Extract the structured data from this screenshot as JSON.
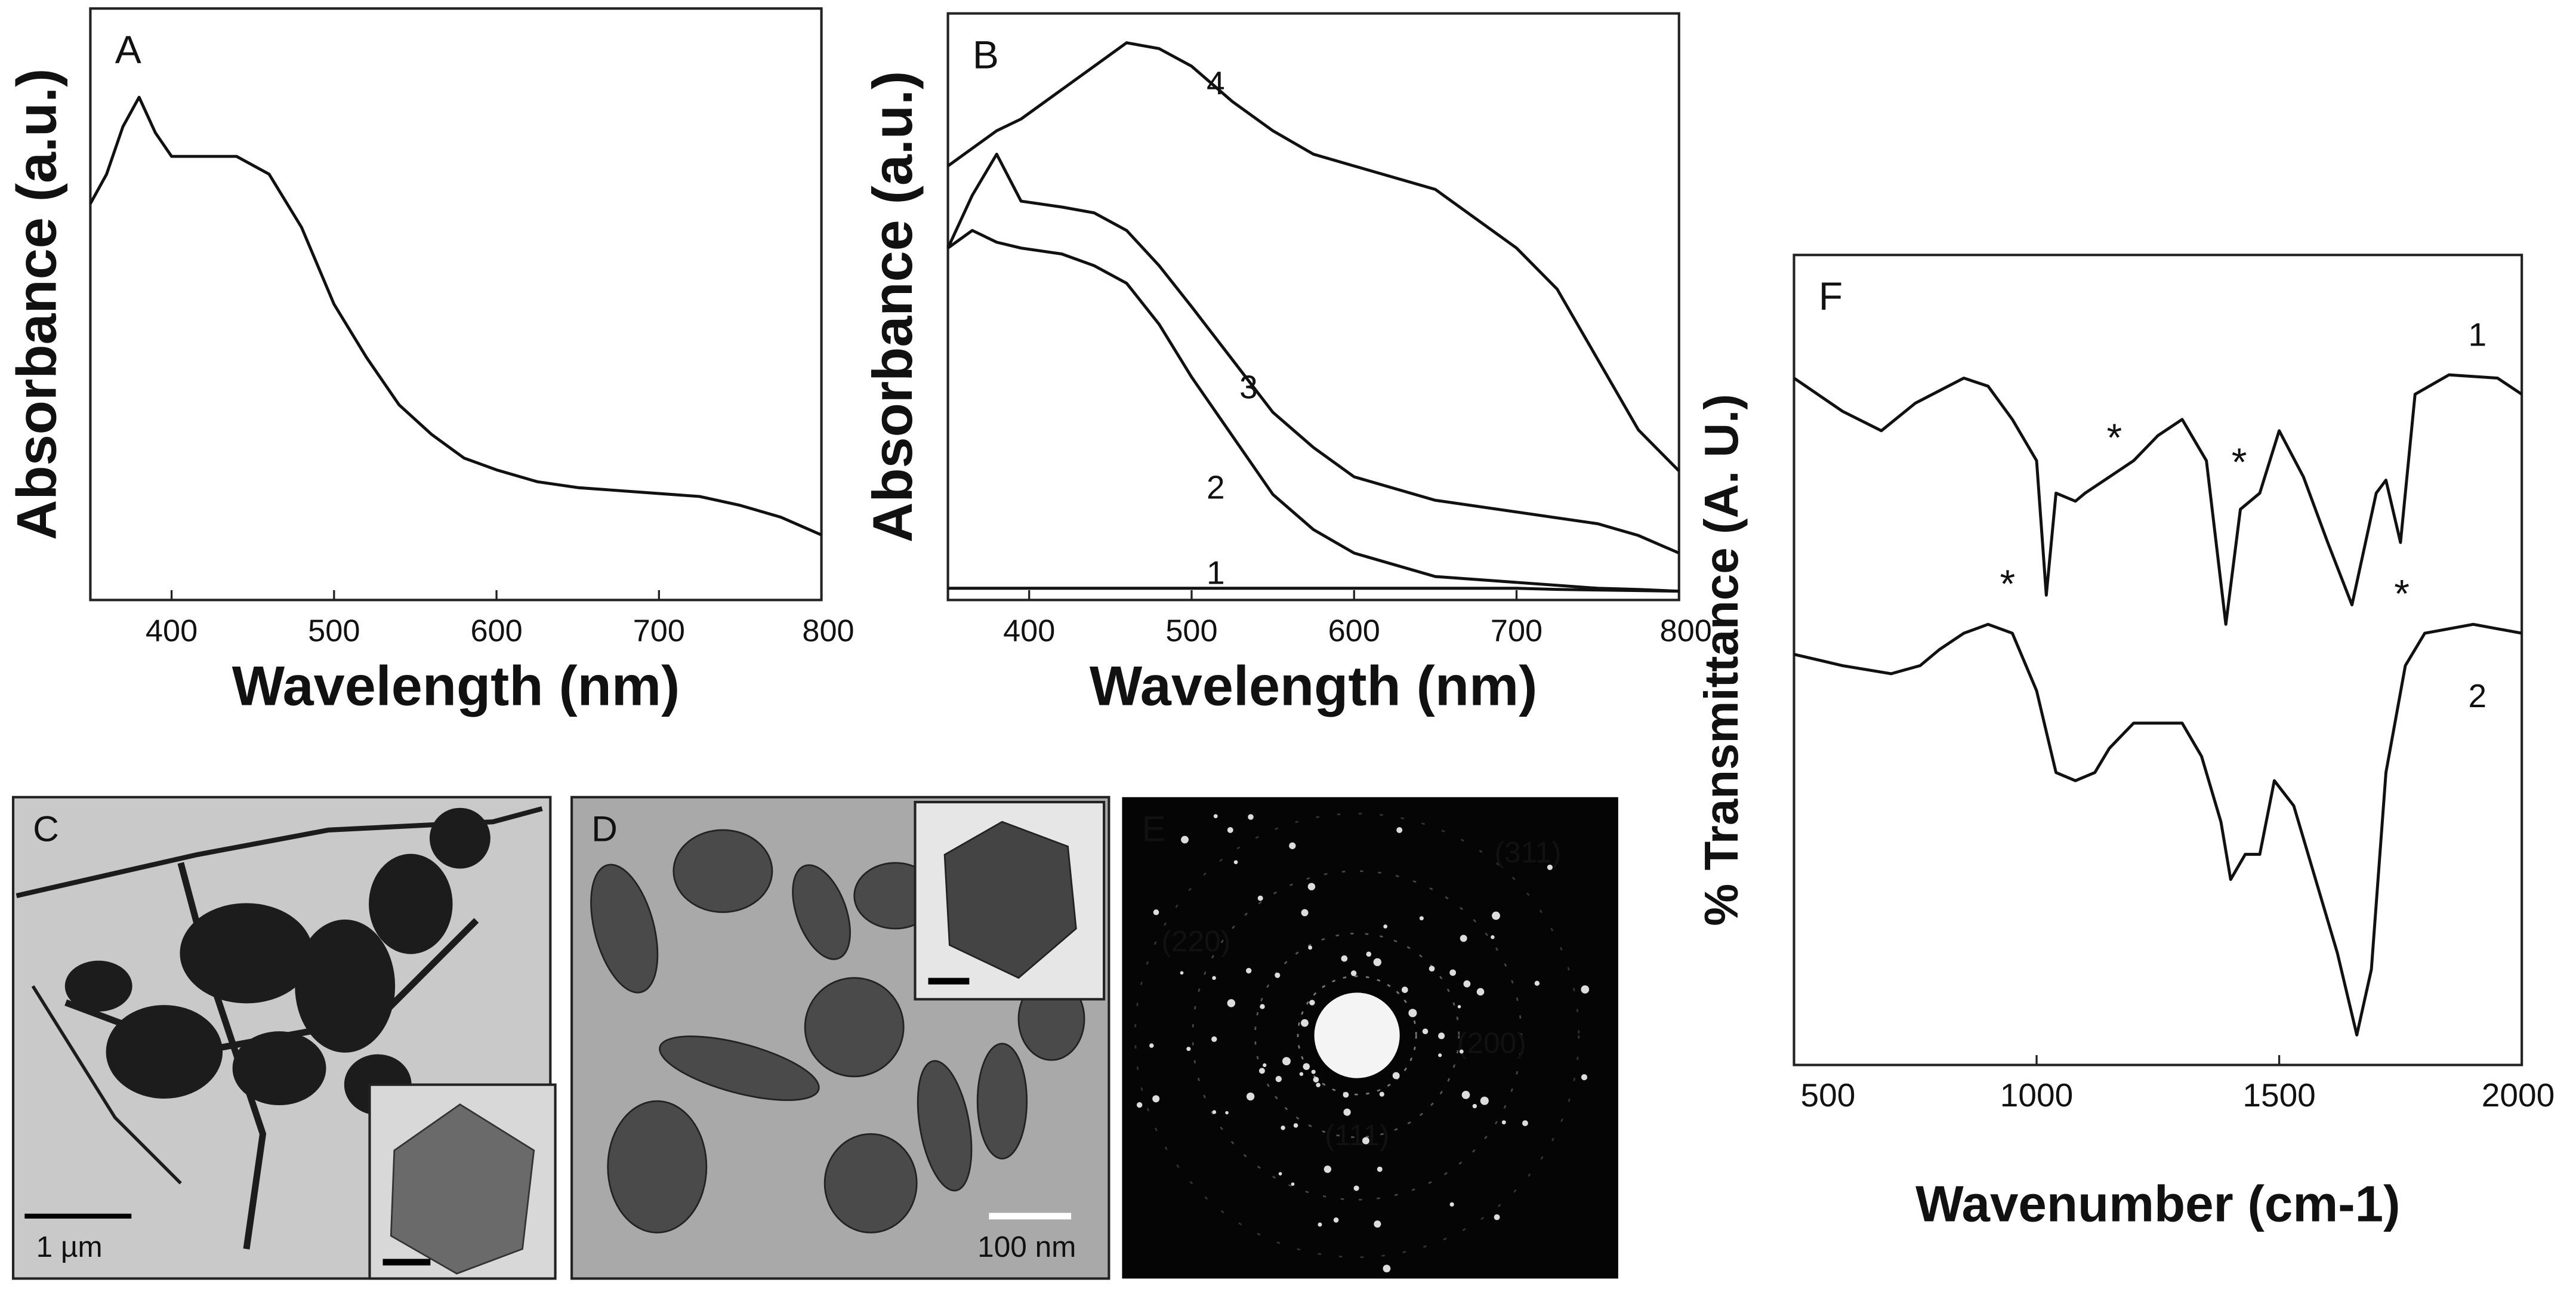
{
  "chart_data": [
    {
      "type": "line",
      "panel_label": "A",
      "xlabel": "Wavelength (nm)",
      "ylabel": "Absorbance (a.u.)",
      "xlim": [
        350,
        800
      ],
      "xticks": [
        400,
        500,
        600,
        700,
        800
      ],
      "ylim": [
        0,
        1
      ],
      "x": [
        350,
        360,
        370,
        380,
        390,
        400,
        420,
        440,
        460,
        480,
        500,
        520,
        540,
        560,
        580,
        600,
        625,
        650,
        675,
        700,
        725,
        750,
        775,
        800
      ],
      "series": [
        {
          "color": "#111111",
          "values": [
            0.67,
            0.72,
            0.8,
            0.85,
            0.79,
            0.75,
            0.75,
            0.75,
            0.72,
            0.63,
            0.5,
            0.41,
            0.33,
            0.28,
            0.24,
            0.22,
            0.2,
            0.19,
            0.185,
            0.18,
            0.175,
            0.16,
            0.14,
            0.11
          ]
        }
      ]
    },
    {
      "type": "line",
      "panel_label": "B",
      "xlabel": "Wavelength (nm)",
      "ylabel": "Absorbance (a.u.)",
      "xlim": [
        350,
        800
      ],
      "xticks": [
        400,
        500,
        600,
        700,
        800
      ],
      "ylim": [
        0,
        1
      ],
      "x": [
        350,
        365,
        380,
        395,
        420,
        440,
        460,
        480,
        500,
        525,
        550,
        575,
        600,
        650,
        700,
        725,
        750,
        775,
        800
      ],
      "series": [
        {
          "name": "1",
          "color": "#111111",
          "values": [
            0.02,
            0.02,
            0.02,
            0.02,
            0.02,
            0.02,
            0.02,
            0.02,
            0.02,
            0.02,
            0.02,
            0.02,
            0.02,
            0.02,
            0.02,
            0.018,
            0.017,
            0.016,
            0.015
          ]
        },
        {
          "name": "2",
          "color": "#111111",
          "values": [
            0.6,
            0.63,
            0.61,
            0.6,
            0.59,
            0.57,
            0.54,
            0.47,
            0.38,
            0.28,
            0.18,
            0.12,
            0.08,
            0.04,
            0.03,
            0.025,
            0.02,
            0.018,
            0.015
          ]
        },
        {
          "name": "3",
          "color": "#111111",
          "values": [
            0.6,
            0.69,
            0.76,
            0.68,
            0.67,
            0.66,
            0.63,
            0.57,
            0.5,
            0.41,
            0.32,
            0.26,
            0.21,
            0.17,
            0.15,
            0.14,
            0.13,
            0.11,
            0.08
          ]
        },
        {
          "name": "4",
          "color": "#111111",
          "values": [
            0.74,
            0.77,
            0.8,
            0.82,
            0.87,
            0.91,
            0.95,
            0.94,
            0.91,
            0.85,
            0.8,
            0.76,
            0.74,
            0.7,
            0.6,
            0.53,
            0.41,
            0.29,
            0.22
          ]
        }
      ]
    },
    {
      "type": "line",
      "panel_label": "F",
      "xlabel": "Wavenumber (cm-1)",
      "ylabel": "% Transmittance (A. U.)",
      "xlim": [
        500,
        2000
      ],
      "xticks": [
        500,
        1000,
        1500,
        2000
      ],
      "ylim": [
        0,
        1
      ],
      "annotations": [
        "*",
        "*",
        "*",
        "*"
      ],
      "series": [
        {
          "name": "1",
          "color": "#111111",
          "x": [
            500,
            600,
            680,
            750,
            850,
            900,
            950,
            1000,
            1020,
            1040,
            1080,
            1100,
            1150,
            1200,
            1250,
            1300,
            1350,
            1390,
            1420,
            1460,
            1500,
            1550,
            1600,
            1650,
            1700,
            1720,
            1750,
            1780,
            1850,
            1950,
            2000
          ],
          "values": [
            0.848,
            0.807,
            0.783,
            0.817,
            0.848,
            0.838,
            0.797,
            0.746,
            0.58,
            0.706,
            0.696,
            0.706,
            0.726,
            0.746,
            0.777,
            0.797,
            0.746,
            0.544,
            0.686,
            0.706,
            0.783,
            0.726,
            0.645,
            0.568,
            0.706,
            0.722,
            0.645,
            0.828,
            0.852,
            0.848,
            0.828
          ]
        },
        {
          "name": "2",
          "color": "#111111",
          "x": [
            500,
            600,
            700,
            760,
            800,
            850,
            900,
            950,
            1000,
            1040,
            1080,
            1120,
            1150,
            1200,
            1300,
            1340,
            1380,
            1400,
            1430,
            1460,
            1490,
            1530,
            1580,
            1620,
            1660,
            1690,
            1720,
            1760,
            1800,
            1900,
            2000
          ],
          "values": [
            0.507,
            0.493,
            0.483,
            0.493,
            0.513,
            0.533,
            0.544,
            0.533,
            0.462,
            0.361,
            0.351,
            0.361,
            0.391,
            0.422,
            0.422,
            0.381,
            0.3,
            0.229,
            0.26,
            0.26,
            0.351,
            0.32,
            0.219,
            0.138,
            0.037,
            0.118,
            0.361,
            0.493,
            0.533,
            0.544,
            0.533
          ]
        }
      ]
    }
  ],
  "panels": [
    {
      "label": "C",
      "scale_bar": "1 µm"
    },
    {
      "label": "D",
      "scale_bar": "100 nm"
    },
    {
      "label": "E",
      "rings": [
        "(311)",
        "(220)",
        "(200)",
        "(111)"
      ]
    }
  ]
}
